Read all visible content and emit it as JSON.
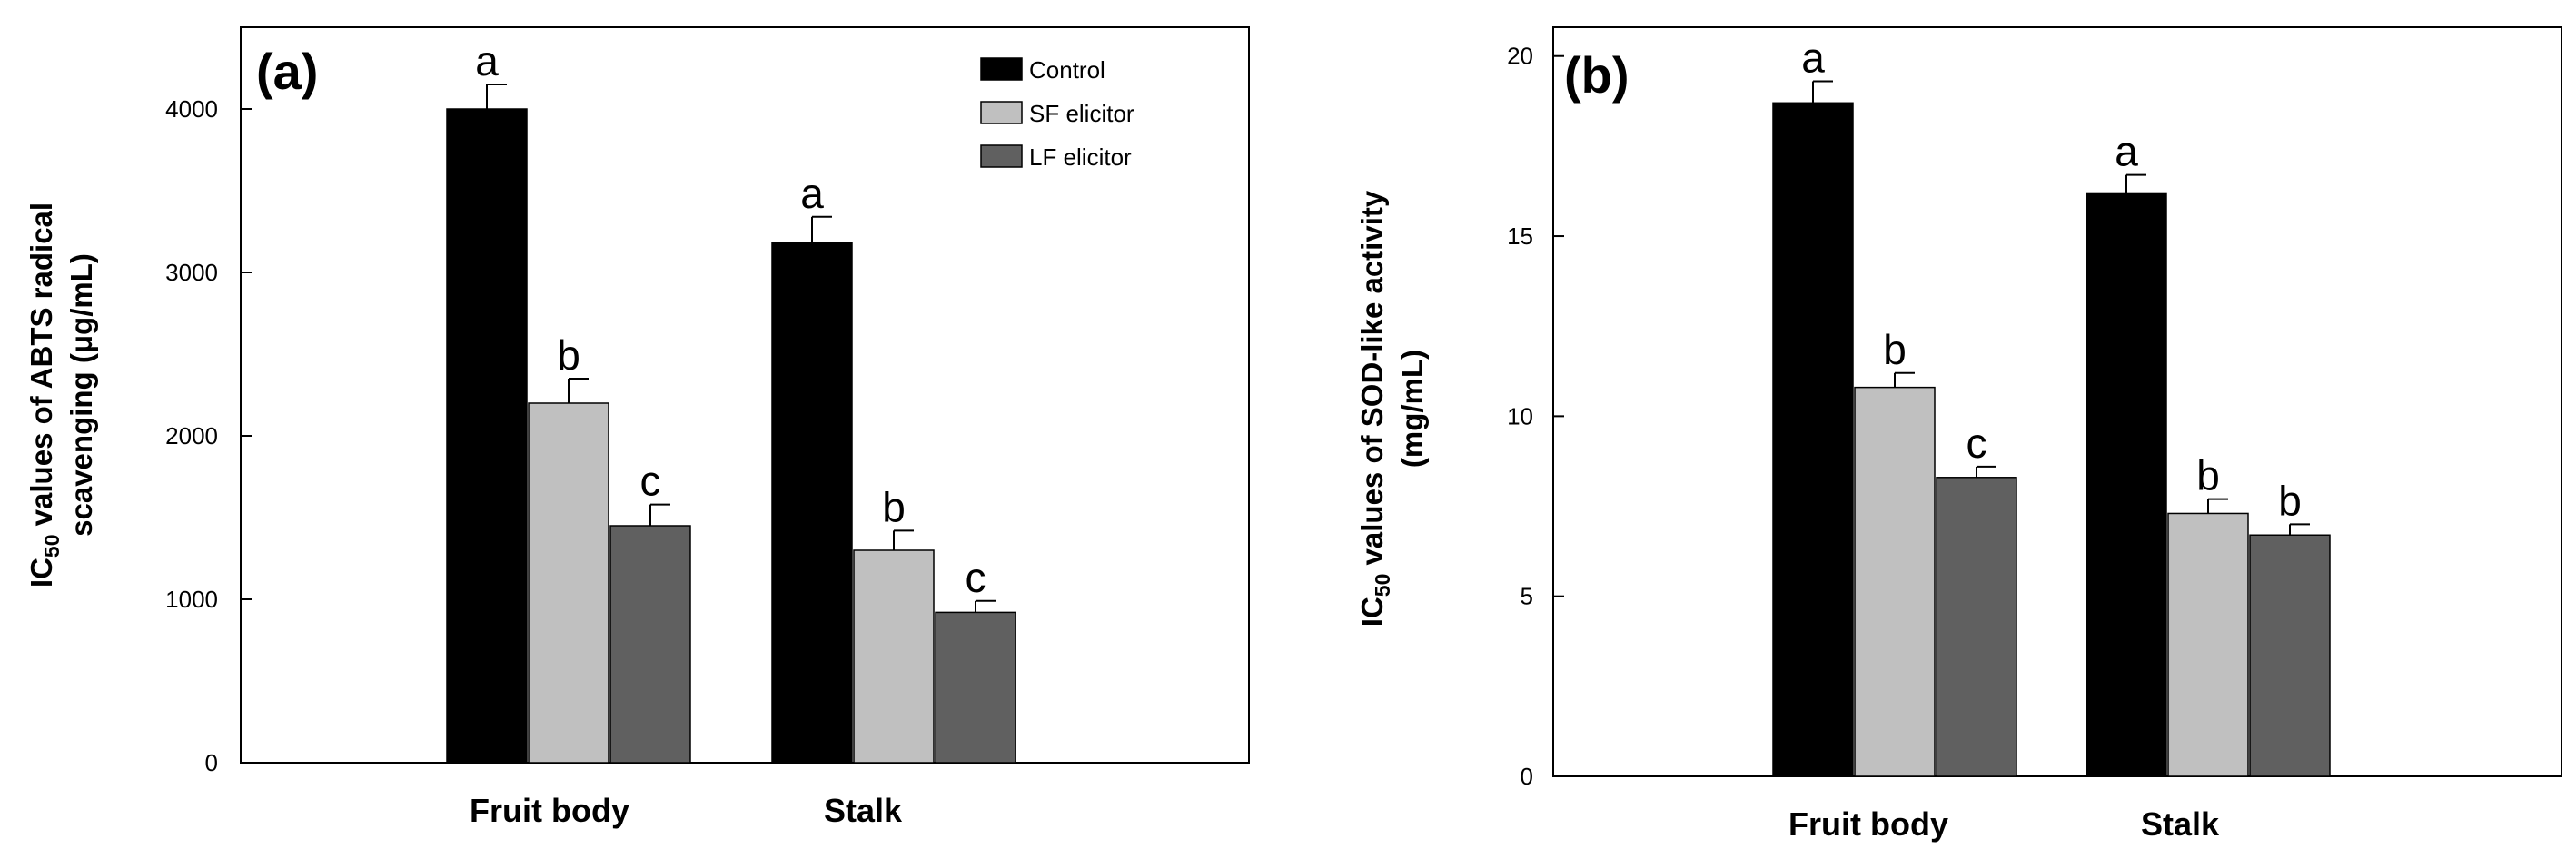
{
  "chart_data": [
    {
      "type": "bar",
      "panel_label": "(a)",
      "categories": [
        "Fruit body",
        "Stalk"
      ],
      "series": [
        {
          "name": "Control",
          "color": "#000000",
          "values": [
            4000,
            3180
          ],
          "errors": [
            150,
            160
          ],
          "letters": [
            "a",
            "a"
          ]
        },
        {
          "name": "SF elicitor",
          "color": "#c0c0c0",
          "values": [
            2200,
            1300
          ],
          "errors": [
            150,
            120
          ],
          "letters": [
            "b",
            "b"
          ]
        },
        {
          "name": "LF elicitor",
          "color": "#606060",
          "values": [
            1450,
            920
          ],
          "errors": [
            130,
            70
          ],
          "letters": [
            "c",
            "c"
          ]
        }
      ],
      "ylabel_prefix": "IC",
      "ylabel_sub": "50",
      "ylabel_line1_rest": " values of ABTS radical",
      "ylabel_line2": "scavenging (μg/mL)",
      "yticks": [
        0,
        1000,
        2000,
        3000,
        4000
      ],
      "ylim": [
        0,
        4500
      ],
      "legend": {
        "position": "top-right",
        "entries": [
          "Control",
          "SF elicitor",
          "LF elicitor"
        ]
      }
    },
    {
      "type": "bar",
      "panel_label": "(b)",
      "categories": [
        "Fruit body",
        "Stalk"
      ],
      "series": [
        {
          "name": "Control",
          "color": "#000000",
          "values": [
            18.7,
            16.2
          ],
          "errors": [
            0.6,
            0.5
          ],
          "letters": [
            "a",
            "a"
          ]
        },
        {
          "name": "SF elicitor",
          "color": "#c0c0c0",
          "values": [
            10.8,
            7.3
          ],
          "errors": [
            0.4,
            0.4
          ],
          "letters": [
            "b",
            "b"
          ]
        },
        {
          "name": "LF elicitor",
          "color": "#606060",
          "values": [
            8.3,
            6.7
          ],
          "errors": [
            0.3,
            0.3
          ],
          "letters": [
            "c",
            "b"
          ]
        }
      ],
      "ylabel_prefix": "IC",
      "ylabel_sub": "50",
      "ylabel_line1_rest": " values of SOD-like activity",
      "ylabel_line2": "(mg/mL)",
      "yticks": [
        0,
        5,
        10,
        15,
        20
      ],
      "ylim": [
        0,
        20.8
      ]
    }
  ]
}
